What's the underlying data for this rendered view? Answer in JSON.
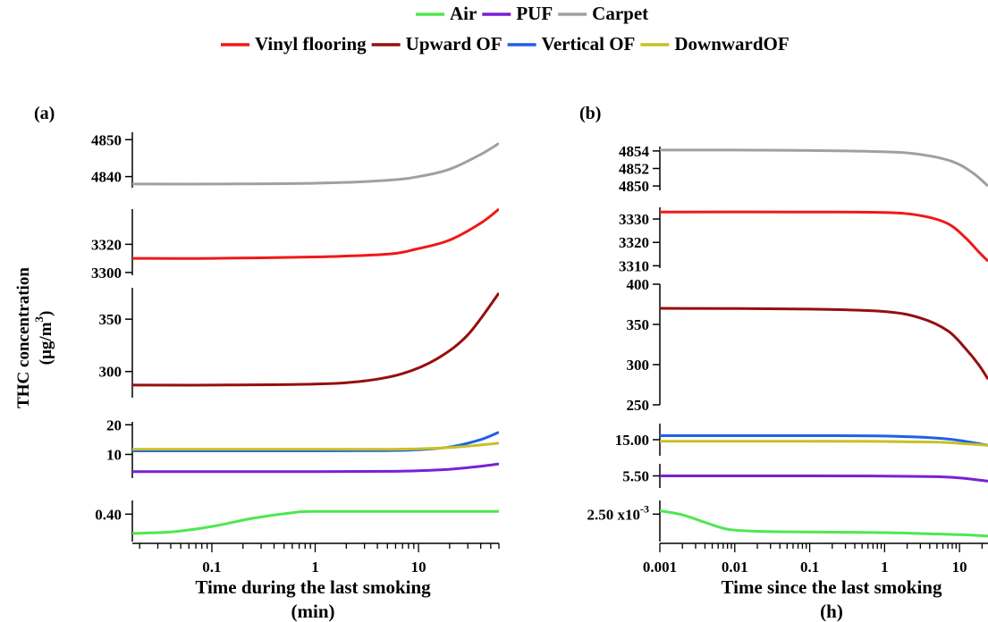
{
  "legend": {
    "items": [
      {
        "label": "Air",
        "color": "#4de84d"
      },
      {
        "label": "PUF",
        "color": "#7b1fd6"
      },
      {
        "label": "Carpet",
        "color": "#a0a0a0"
      },
      {
        "label": "Vinyl flooring",
        "color": "#f01818"
      },
      {
        "label": "Upward OF",
        "color": "#960e0e"
      },
      {
        "label": "Vertical OF",
        "color": "#1f5fe8"
      },
      {
        "label": "DownwardOF",
        "color": "#c8c023"
      }
    ]
  },
  "shared_ylabel": {
    "line1": "THC concentration",
    "line2": "(µg/m",
    "sup": "3",
    "close": ")"
  },
  "chart_data": [
    {
      "panel_label": "(a)",
      "type": "line",
      "xscale": "log",
      "xlim": [
        0.017,
        60
      ],
      "xticks": [
        {
          "v": 0.1,
          "label": "0.1"
        },
        {
          "v": 1,
          "label": "1"
        },
        {
          "v": 10,
          "label": "10"
        }
      ],
      "xlabel": "Time during the last smoking",
      "xlabel2": "(min)",
      "subplots": [
        {
          "ylim": [
            4837,
            4852
          ],
          "yticks": [
            {
              "v": 4840,
              "label": "4840"
            },
            {
              "v": 4850,
              "label": "4850"
            }
          ],
          "series": [
            {
              "name": "Carpet",
              "x": [
                0.017,
                0.1,
                1,
                5,
                10,
                20,
                40,
                60
              ],
              "y": [
                4838,
                4838,
                4838.2,
                4839,
                4840,
                4842,
                4846,
                4849
              ]
            }
          ]
        },
        {
          "ylim": [
            3298,
            3345
          ],
          "yticks": [
            {
              "v": 3300,
              "label": "3300"
            },
            {
              "v": 3320,
              "label": "3320"
            }
          ],
          "series": [
            {
              "name": "Vinyl flooring",
              "x": [
                0.017,
                0.1,
                1,
                5,
                10,
                20,
                40,
                60
              ],
              "y": [
                3310,
                3310,
                3311,
                3313,
                3317,
                3323,
                3335,
                3345
              ]
            }
          ]
        },
        {
          "ylim": [
            275,
            380
          ],
          "yticks": [
            {
              "v": 300,
              "label": "300"
            },
            {
              "v": 350,
              "label": "350"
            }
          ],
          "series": [
            {
              "name": "Upward OF",
              "x": [
                0.017,
                0.1,
                1,
                3,
                7,
                15,
                30,
                60
              ],
              "y": [
                287,
                287,
                288,
                291,
                298,
                312,
                335,
                375
              ]
            }
          ]
        },
        {
          "ylim": [
            2,
            21
          ],
          "yticks": [
            {
              "v": 10,
              "label": "10"
            },
            {
              "v": 20,
              "label": "20"
            }
          ],
          "series": [
            {
              "name": "Vertical OF",
              "x": [
                0.017,
                0.1,
                1,
                5,
                10,
                20,
                40,
                60
              ],
              "y": [
                11.2,
                11.2,
                11.2,
                11.3,
                11.6,
                12.5,
                15,
                17.5
              ]
            },
            {
              "name": "DownwardOF",
              "x": [
                0.017,
                0.1,
                1,
                5,
                10,
                20,
                40,
                60
              ],
              "y": [
                11.7,
                11.7,
                11.7,
                11.7,
                11.9,
                12.3,
                13.2,
                13.8
              ]
            },
            {
              "name": "PUF",
              "x": [
                0.017,
                0.1,
                1,
                5,
                10,
                20,
                40,
                60
              ],
              "y": [
                4.2,
                4.2,
                4.2,
                4.3,
                4.5,
                5,
                6,
                6.8
              ]
            }
          ]
        },
        {
          "ylim": [
            0.3,
            0.45
          ],
          "yticks": [
            {
              "v": 0.4,
              "label": "0.40"
            }
          ],
          "series": [
            {
              "name": "Air",
              "x": [
                0.017,
                0.04,
                0.1,
                0.25,
                0.6,
                1,
                10,
                60
              ],
              "y": [
                0.33,
                0.335,
                0.355,
                0.385,
                0.405,
                0.41,
                0.41,
                0.41
              ]
            }
          ]
        }
      ]
    },
    {
      "panel_label": "(b)",
      "type": "line",
      "xscale": "log",
      "xlim": [
        0.001,
        24
      ],
      "xticks": [
        {
          "v": 0.001,
          "label": "0.001"
        },
        {
          "v": 0.01,
          "label": "0.01"
        },
        {
          "v": 0.1,
          "label": "0.1"
        },
        {
          "v": 1,
          "label": "1"
        },
        {
          "v": 10,
          "label": "10"
        }
      ],
      "xlabel": "Time since the last smoking",
      "xlabel2": "(h)",
      "subplots": [
        {
          "ylim": [
            4849.5,
            4854.5
          ],
          "yticks": [
            {
              "v": 4850,
              "label": "4850"
            },
            {
              "v": 4852,
              "label": "4852"
            },
            {
              "v": 4854,
              "label": "4854"
            }
          ],
          "series": [
            {
              "name": "Carpet",
              "x": [
                0.001,
                0.01,
                0.1,
                1,
                3,
                8,
                15,
                24
              ],
              "y": [
                4854.1,
                4854.1,
                4854.05,
                4853.9,
                4853.6,
                4852.8,
                4851.5,
                4850
              ]
            }
          ]
        },
        {
          "ylim": [
            3309,
            3335
          ],
          "yticks": [
            {
              "v": 3310,
              "label": "3310"
            },
            {
              "v": 3320,
              "label": "3320"
            },
            {
              "v": 3330,
              "label": "3330"
            }
          ],
          "series": [
            {
              "name": "Vinyl flooring",
              "x": [
                0.001,
                0.1,
                1,
                3,
                7,
                12,
                18,
                24
              ],
              "y": [
                3333,
                3333,
                3332.8,
                3331.5,
                3328,
                3322,
                3316,
                3312
              ]
            }
          ]
        },
        {
          "ylim": [
            250,
            400
          ],
          "yticks": [
            {
              "v": 250,
              "label": "250"
            },
            {
              "v": 300,
              "label": "300"
            },
            {
              "v": 350,
              "label": "350"
            },
            {
              "v": 400,
              "label": "400"
            }
          ],
          "series": [
            {
              "name": "Upward OF",
              "x": [
                0.001,
                0.1,
                1,
                3,
                7,
                12,
                18,
                24
              ],
              "y": [
                370,
                369,
                366,
                358,
                342,
                320,
                300,
                282
              ]
            }
          ]
        },
        {
          "ylim": [
            13,
            17
          ],
          "yticks": [
            {
              "v": 15,
              "label": "15.00"
            }
          ],
          "series": [
            {
              "name": "Vertical OF",
              "x": [
                0.001,
                0.1,
                1,
                5,
                10,
                24
              ],
              "y": [
                15.5,
                15.5,
                15.45,
                15.2,
                14.9,
                14.3
              ]
            },
            {
              "name": "DownwardOF",
              "x": [
                0.001,
                0.1,
                1,
                5,
                10,
                24
              ],
              "y": [
                14.8,
                14.8,
                14.78,
                14.7,
                14.55,
                14.3
              ]
            }
          ]
        },
        {
          "ylim": [
            4,
            7
          ],
          "yticks": [
            {
              "v": 5.5,
              "label": "5.50"
            }
          ],
          "series": [
            {
              "name": "PUF",
              "x": [
                0.001,
                0.1,
                1,
                5,
                10,
                24
              ],
              "y": [
                5.5,
                5.5,
                5.48,
                5.4,
                5.25,
                4.85
              ]
            }
          ]
        },
        {
          "ylim": [
            0.0021,
            0.0027
          ],
          "yticks": [
            {
              "v": 0.0025,
              "label": "2.50 x10",
              "sup": "-3"
            }
          ],
          "series": [
            {
              "name": "Air",
              "x": [
                0.001,
                0.002,
                0.004,
                0.008,
                0.02,
                0.1,
                1,
                10,
                24
              ],
              "y": [
                0.00255,
                0.00249,
                0.00238,
                0.00228,
                0.00225,
                0.00224,
                0.00223,
                0.0022,
                0.00218
              ]
            }
          ]
        }
      ]
    }
  ]
}
